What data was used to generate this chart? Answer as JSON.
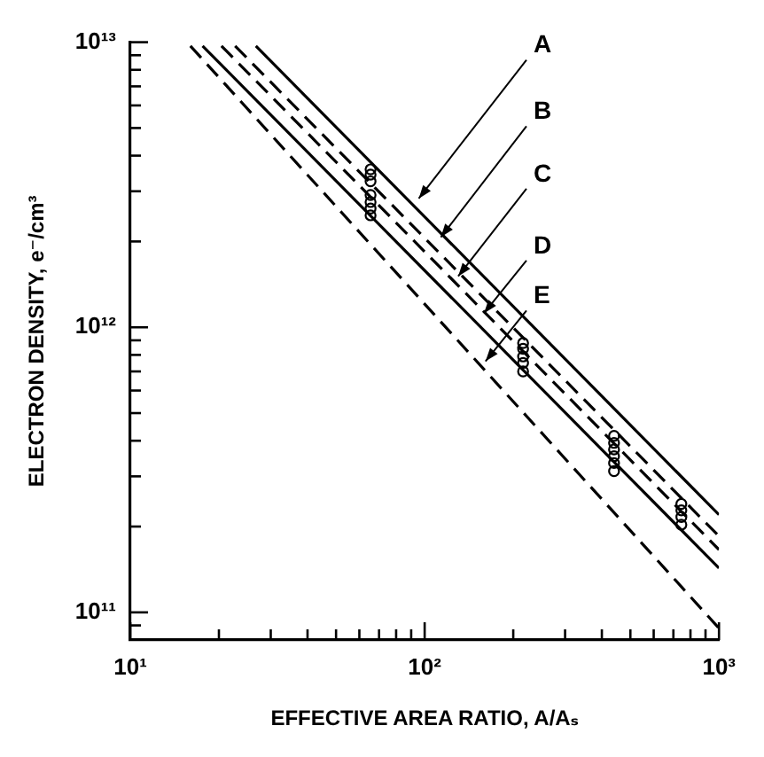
{
  "chart_data": {
    "type": "line",
    "xlabel": "EFFECTIVE AREA RATIO, A/Aₛ",
    "ylabel": "ELECTRON DENSITY, e⁻/cm³",
    "log": "xy",
    "grid": false,
    "legend": false,
    "xlim": [
      10,
      1000
    ],
    "ylim": [
      80000000000.0,
      10000000000000.0
    ],
    "xticks": [
      {
        "value": 10,
        "label": "10¹"
      },
      {
        "value": 20,
        "label": null
      },
      {
        "value": 30,
        "label": null
      },
      {
        "value": 40,
        "label": null
      },
      {
        "value": 50,
        "label": null
      },
      {
        "value": 60,
        "label": null
      },
      {
        "value": 70,
        "label": null
      },
      {
        "value": 80,
        "label": null
      },
      {
        "value": 90,
        "label": null
      },
      {
        "value": 100,
        "label": "10²"
      },
      {
        "value": 200,
        "label": null
      },
      {
        "value": 300,
        "label": null
      },
      {
        "value": 400,
        "label": null
      },
      {
        "value": 500,
        "label": null
      },
      {
        "value": 600,
        "label": null
      },
      {
        "value": 700,
        "label": null
      },
      {
        "value": 800,
        "label": null
      },
      {
        "value": 900,
        "label": null
      },
      {
        "value": 1000,
        "label": "10³"
      }
    ],
    "yticks": [
      {
        "value": 90000000000.0,
        "label": null
      },
      {
        "value": 100000000000.0,
        "label": "10¹¹"
      },
      {
        "value": 200000000000.0,
        "label": null
      },
      {
        "value": 300000000000.0,
        "label": null
      },
      {
        "value": 400000000000.0,
        "label": null
      },
      {
        "value": 500000000000.0,
        "label": null
      },
      {
        "value": 600000000000.0,
        "label": null
      },
      {
        "value": 700000000000.0,
        "label": null
      },
      {
        "value": 800000000000.0,
        "label": null
      },
      {
        "value": 900000000000.0,
        "label": null
      },
      {
        "value": 1000000000000.0,
        "label": "10¹²"
      },
      {
        "value": 2000000000000.0,
        "label": null
      },
      {
        "value": 3000000000000.0,
        "label": null
      },
      {
        "value": 4000000000000.0,
        "label": null
      },
      {
        "value": 5000000000000.0,
        "label": null
      },
      {
        "value": 6000000000000.0,
        "label": null
      },
      {
        "value": 7000000000000.0,
        "label": null
      },
      {
        "value": 8000000000000.0,
        "label": null
      },
      {
        "value": 9000000000000.0,
        "label": null
      },
      {
        "value": 10000000000000.0,
        "label": "10¹³"
      }
    ],
    "series": [
      {
        "color": "#000000",
        "line_style": "solid",
        "marker": "none",
        "x": [
          26.7,
          1000
        ],
        "values": [
          9700000000000.0,
          220000000000.0
        ]
      },
      {
        "color": "#000000",
        "line_style": "dashed",
        "marker": "none",
        "x": [
          22.7,
          1000
        ],
        "values": [
          9700000000000.0,
          185000000000.0
        ]
      },
      {
        "color": "#000000",
        "line_style": "dashed",
        "marker": "none",
        "x": [
          20.4,
          1000
        ],
        "values": [
          9700000000000.0,
          166000000000.0
        ]
      },
      {
        "color": "#000000",
        "line_style": "solid",
        "marker": "none",
        "x": [
          17.6,
          1000
        ],
        "values": [
          9700000000000.0,
          143000000000.0
        ]
      },
      {
        "color": "#000000",
        "line_style": "dashed",
        "marker": "none",
        "x": [
          16.0,
          1000
        ],
        "values": [
          9700000000000.0,
          88000000000.0
        ]
      },
      {
        "type": "scatter",
        "color": "#000000",
        "marker": "circle",
        "x": [
          65.5,
          65.5,
          65.5,
          65.5,
          65.5,
          65.5,
          65.5,
          216,
          216,
          216,
          216,
          216,
          440,
          440,
          440,
          440,
          440,
          440,
          745,
          745,
          745,
          745
        ],
        "values": [
          3580000000000.0,
          3430000000000.0,
          3250000000000.0,
          2910000000000.0,
          2750000000000.0,
          2610000000000.0,
          2470000000000.0,
          880000000000.0,
          840000000000.0,
          790000000000.0,
          750000000000.0,
          700000000000.0,
          416000000000.0,
          393000000000.0,
          373000000000.0,
          353000000000.0,
          334000000000.0,
          313000000000.0,
          240000000000.0,
          228000000000.0,
          216000000000.0,
          203000000000.0
        ]
      }
    ],
    "annotations": [
      {
        "text": "A",
        "x": 95.5,
        "y": 2830000000000.0
      },
      {
        "text": "B",
        "x": 113.5,
        "y": 2070000000000.0
      },
      {
        "text": "C",
        "x": 130,
        "y": 1510000000000.0
      },
      {
        "text": "D",
        "x": 159,
        "y": 1120000000000.0
      },
      {
        "text": "E",
        "x": 161,
        "y": 760000000000.0
      }
    ]
  }
}
